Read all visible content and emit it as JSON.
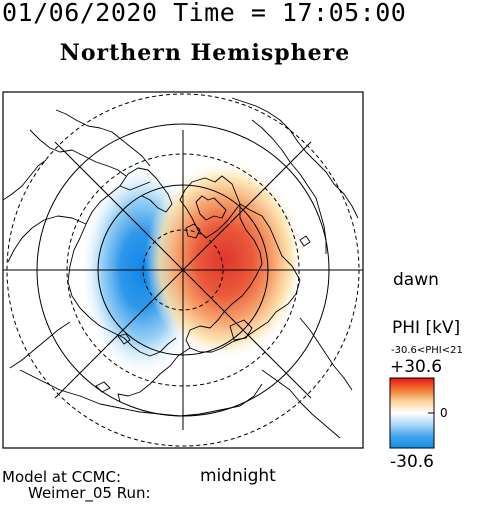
{
  "header": {
    "date_time": "01/06/2020 Time = 17:05:00",
    "title": "Northern Hemisphere"
  },
  "labels": {
    "dawn": "dawn",
    "midnight": "midnight",
    "model_line1": "Model at CCMC:",
    "model_line2": "Weimer_05 Run:"
  },
  "colorbar": {
    "title": "PHI [kV]",
    "range_text": "-30.6<PHI<21",
    "max_label": "+30.6",
    "mid_label": "0",
    "min_label": "-30.6",
    "max_value": 30.6,
    "min_value": -30.6,
    "colors": [
      "#e8141c",
      "#f2772e",
      "#fbd39a",
      "#ffffff",
      "#a9d8f6",
      "#47a4ec",
      "#0f8fe9"
    ]
  },
  "plot": {
    "neg_color": "#1e8ae6",
    "pos_color": "#e8473a",
    "grid_color": "#000000"
  }
}
